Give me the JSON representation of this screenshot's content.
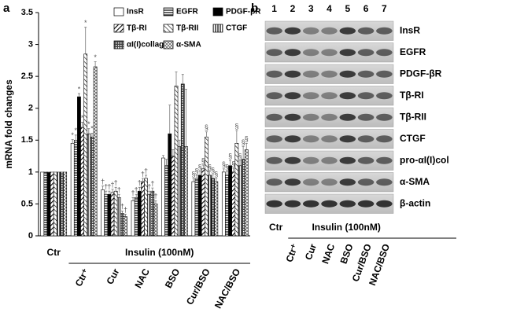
{
  "chart_data": {
    "type": "bar",
    "panel_label": "a",
    "ylabel": "mRNA fold changes",
    "categories": [
      "Ctr",
      "Ctr⁺",
      "Cur",
      "NAC",
      "BSO",
      "Cur/BSO",
      "NAC/BSO"
    ],
    "group_label": "Insulin (100nM)",
    "ylim": [
      0,
      3.5
    ],
    "yticks": [
      0,
      0.5,
      1,
      1.5,
      2,
      2.5,
      3,
      3.5
    ],
    "series": [
      {
        "name": "InsR",
        "color": "#ffffff",
        "pattern": "solid",
        "values": [
          1,
          1.45,
          0.72,
          0.55,
          1.22,
          0.85,
          1.0
        ],
        "errors": [
          0,
          0.06,
          0.06,
          0.05,
          0.04,
          0.05,
          0.05
        ],
        "significance": [
          null,
          "*",
          "†",
          "†",
          null,
          "§",
          "§"
        ]
      },
      {
        "name": "EGFR",
        "color": "#000000",
        "pattern": "hstripe",
        "values": [
          1,
          1.5,
          0.65,
          0.6,
          1.1,
          0.9,
          0.95
        ],
        "errors": [
          0,
          0.08,
          0.05,
          0.05,
          0.1,
          0.05,
          0.06
        ],
        "significance": [
          null,
          "*",
          "†",
          "†",
          null,
          "§",
          "§"
        ]
      },
      {
        "name": "PDGF-βR",
        "color": "#000000",
        "pattern": "solid",
        "values": [
          1,
          2.18,
          0.65,
          0.7,
          1.6,
          0.95,
          1.1
        ],
        "errors": [
          0,
          0.05,
          0.05,
          0.06,
          0.45,
          0.06,
          0.08
        ],
        "significance": [
          null,
          "*",
          "†",
          "†",
          null,
          "§",
          "§"
        ]
      },
      {
        "name": "Tβ-RI",
        "color": "#000000",
        "pattern": "diagback",
        "values": [
          1,
          1.7,
          0.68,
          0.85,
          1.25,
          1.05,
          1.0
        ],
        "errors": [
          0,
          0.08,
          0.05,
          0.05,
          0.1,
          0.06,
          0.06
        ],
        "significance": [
          null,
          "*",
          "†",
          "†",
          null,
          "§",
          "§"
        ]
      },
      {
        "name": "Tβ-RII",
        "color": "#000000",
        "pattern": "diagfwd",
        "values": [
          1,
          2.85,
          0.7,
          0.9,
          2.35,
          1.55,
          1.45
        ],
        "errors": [
          0,
          0.42,
          0.06,
          0.05,
          0.22,
          0.08,
          0.2
        ],
        "significance": [
          null,
          "*",
          "†",
          "†",
          null,
          "§",
          "§"
        ]
      },
      {
        "name": "CTGF",
        "color": "#000000",
        "pattern": "vstripe",
        "values": [
          1,
          1.6,
          0.6,
          0.65,
          1.4,
          0.95,
          1.1
        ],
        "errors": [
          0,
          0.08,
          0.05,
          0.05,
          0.1,
          0.06,
          0.08
        ],
        "significance": [
          null,
          "*",
          "†",
          "†",
          null,
          "§",
          "§"
        ]
      },
      {
        "name": "αI(I)collagen",
        "color": "#000000",
        "pattern": "dots",
        "values": [
          1,
          1.55,
          0.35,
          0.7,
          2.38,
          0.9,
          1.2
        ],
        "errors": [
          0,
          0.06,
          0.04,
          0.05,
          0.15,
          0.06,
          0.2
        ],
        "significance": [
          null,
          "*",
          "†",
          "†",
          null,
          "§",
          "§"
        ]
      },
      {
        "name": "α-SMA",
        "color": "#000000",
        "pattern": "cross",
        "values": [
          1,
          2.65,
          0.3,
          0.5,
          1.4,
          0.85,
          1.35
        ],
        "errors": [
          0,
          0.08,
          0.04,
          0.05,
          0.9,
          0.05,
          0.1
        ],
        "significance": [
          null,
          "*",
          "†",
          "†",
          null,
          "§",
          "§"
        ]
      }
    ]
  },
  "panel_b": {
    "panel_label": "b",
    "lanes": [
      "1",
      "2",
      "3",
      "4",
      "5",
      "6",
      "7"
    ],
    "rows": [
      "InsR",
      "EGFR",
      "PDGF-βR",
      "Tβ-RI",
      "Tβ-RII",
      "CTGF",
      "pro-αI(I)col",
      "α-SMA",
      "β-actin"
    ],
    "control_label": "Ctr",
    "group_label": "Insulin (100nM)",
    "lane_labels": [
      "Ctr⁺",
      "Cur",
      "NAC",
      "BSO",
      "Cur/BSO",
      "NAC/BSO"
    ]
  }
}
